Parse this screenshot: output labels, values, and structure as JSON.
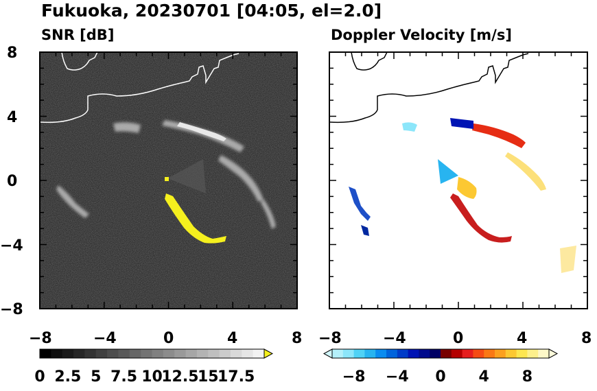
{
  "title": "Fukuoka, 20230701 [04:05, el=2.0]",
  "colors": {
    "snr_background": "#1e1e1e",
    "echo_yellow": "#f5f01e",
    "frame": "#000000"
  },
  "chart_data": [
    {
      "type": "heatmap",
      "subtitle": "SNR [dB]",
      "xlim": [
        -8,
        8
      ],
      "ylim": [
        -8,
        8
      ],
      "xticks": [
        "−8",
        "−4",
        "0",
        "4",
        "8"
      ],
      "yticks": [
        "8",
        "4",
        "0",
        "−4",
        "−8"
      ],
      "colorbar": {
        "range": [
          0,
          20
        ],
        "extend": "max",
        "tick_values": [
          0,
          2.5,
          5,
          7.5,
          10,
          12.5,
          15,
          17.5
        ],
        "tick_labels": [
          "0",
          "2.5",
          "5",
          "7.5",
          "10",
          "12.5",
          "15",
          "17.5"
        ],
        "colors": [
          "#000000",
          "#0f0f0f",
          "#1a1a1a",
          "#262626",
          "#333333",
          "#404040",
          "#4d4d4d",
          "#595959",
          "#666666",
          "#737373",
          "#808080",
          "#8c8c8c",
          "#999999",
          "#a6a6a6",
          "#b3b3b3",
          "#bfbfbf",
          "#cccccc",
          "#d9d9d9",
          "#e6e6e6",
          "#f2f2f2"
        ],
        "extend_color": "#f5f01e"
      }
    },
    {
      "type": "heatmap",
      "subtitle": "Doppler Velocity [m/s]",
      "xlim": [
        -8,
        8
      ],
      "ylim": [
        -8,
        8
      ],
      "xticks": [
        "−8",
        "−4",
        "0",
        "4",
        "8"
      ],
      "yticks": [
        "8",
        "4",
        "0",
        "−4",
        "−8"
      ],
      "colorbar": {
        "range": [
          -10,
          10
        ],
        "extend": "both",
        "tick_values": [
          -8,
          -4,
          0,
          4,
          8
        ],
        "tick_labels": [
          "−8",
          "−4",
          "0",
          "4",
          "8"
        ],
        "colors": [
          "#b4f0fa",
          "#8ce6fa",
          "#50d2f5",
          "#28b4f0",
          "#0a8cf0",
          "#0064dc",
          "#003cc8",
          "#0014b4",
          "#000a8c",
          "#000064",
          "#780000",
          "#b40000",
          "#e61e1e",
          "#f54b14",
          "#fa7814",
          "#fca01e",
          "#fcc832",
          "#fde650",
          "#fdf08c",
          "#fdf8c8"
        ],
        "extend_low_color": "#d2f8fc",
        "extend_high_color": "#fefcdc"
      }
    }
  ]
}
